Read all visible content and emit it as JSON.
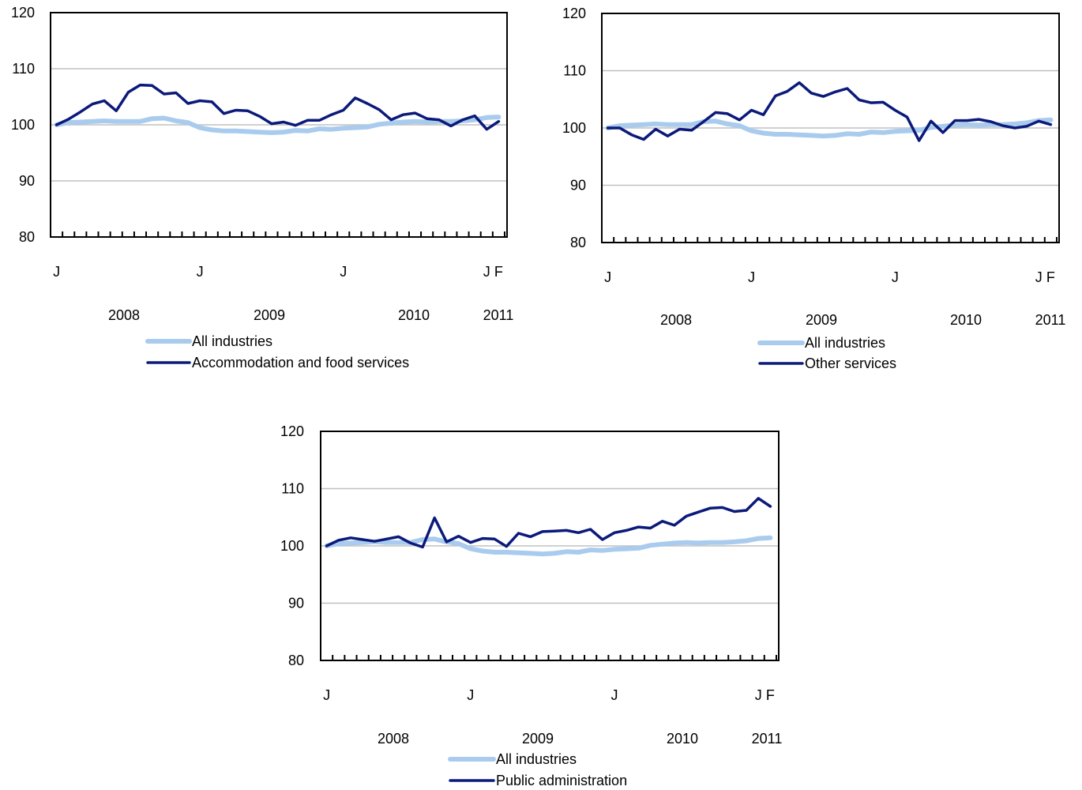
{
  "colors": {
    "all_industries": "#a9cbee",
    "sector": "#0b1a7a",
    "grid": "#c0c0c0"
  },
  "chart_data": [
    {
      "type": "line",
      "title": "",
      "xlabel": "",
      "ylabel": "",
      "ylim": [
        80,
        120
      ],
      "yticks": [
        "80",
        "90",
        "100",
        "110",
        "120"
      ],
      "x": [
        "2008-01",
        "2008-02",
        "2008-03",
        "2008-04",
        "2008-05",
        "2008-06",
        "2008-07",
        "2008-08",
        "2008-09",
        "2008-10",
        "2008-11",
        "2008-12",
        "2009-01",
        "2009-02",
        "2009-03",
        "2009-04",
        "2009-05",
        "2009-06",
        "2009-07",
        "2009-08",
        "2009-09",
        "2009-10",
        "2009-11",
        "2009-12",
        "2010-01",
        "2010-02",
        "2010-03",
        "2010-04",
        "2010-05",
        "2010-06",
        "2010-07",
        "2010-08",
        "2010-09",
        "2010-10",
        "2010-11",
        "2010-12",
        "2011-01",
        "2011-02"
      ],
      "month_labels": [
        {
          "label": "J",
          "month": "2008-01"
        },
        {
          "label": "J",
          "month": "2009-01"
        },
        {
          "label": "J",
          "month": "2010-01"
        },
        {
          "label": "J",
          "month": "2011-01"
        },
        {
          "label": "F",
          "month": "2011-02"
        }
      ],
      "year_labels": [
        "2008",
        "2009",
        "2010",
        "2011"
      ],
      "grid": "horizontal",
      "legend_position": "bottom",
      "series": [
        {
          "name": "All industries",
          "values": [
            100,
            100.4,
            100.5,
            100.6,
            100.7,
            100.6,
            100.6,
            100.6,
            101.1,
            101.2,
            100.7,
            100.4,
            99.5,
            99.1,
            98.9,
            98.9,
            98.8,
            98.7,
            98.6,
            98.7,
            99.0,
            98.9,
            99.3,
            99.2,
            99.4,
            99.5,
            99.6,
            100.1,
            100.3,
            100.5,
            100.6,
            100.5,
            100.6,
            100.6,
            100.7,
            100.9,
            101.3,
            101.4
          ]
        },
        {
          "name": "Accommodation and food services",
          "values": [
            100,
            101,
            102.3,
            103.7,
            104.3,
            102.5,
            105.8,
            107.1,
            107,
            105.5,
            105.7,
            103.8,
            104.3,
            104.1,
            102,
            102.6,
            102.5,
            101.5,
            100.2,
            100.5,
            99.9,
            100.8,
            100.8,
            101.8,
            102.6,
            104.8,
            103.8,
            102.7,
            100.9,
            101.8,
            102.1,
            101.1,
            100.9,
            99.8,
            100.9,
            101.6,
            99.2,
            100.6
          ]
        }
      ]
    },
    {
      "type": "line",
      "title": "",
      "xlabel": "",
      "ylabel": "",
      "ylim": [
        80,
        120
      ],
      "yticks": [
        "80",
        "90",
        "100",
        "110",
        "120"
      ],
      "x": [
        "2008-01",
        "2008-02",
        "2008-03",
        "2008-04",
        "2008-05",
        "2008-06",
        "2008-07",
        "2008-08",
        "2008-09",
        "2008-10",
        "2008-11",
        "2008-12",
        "2009-01",
        "2009-02",
        "2009-03",
        "2009-04",
        "2009-05",
        "2009-06",
        "2009-07",
        "2009-08",
        "2009-09",
        "2009-10",
        "2009-11",
        "2009-12",
        "2010-01",
        "2010-02",
        "2010-03",
        "2010-04",
        "2010-05",
        "2010-06",
        "2010-07",
        "2010-08",
        "2010-09",
        "2010-10",
        "2010-11",
        "2010-12",
        "2011-01",
        "2011-02"
      ],
      "month_labels": [
        {
          "label": "J",
          "month": "2008-01"
        },
        {
          "label": "J",
          "month": "2009-01"
        },
        {
          "label": "J",
          "month": "2010-01"
        },
        {
          "label": "J",
          "month": "2011-01"
        },
        {
          "label": "F",
          "month": "2011-02"
        }
      ],
      "year_labels": [
        "2008",
        "2009",
        "2010",
        "2011"
      ],
      "grid": "horizontal",
      "legend_position": "bottom",
      "series": [
        {
          "name": "All industries",
          "values": [
            100,
            100.4,
            100.5,
            100.6,
            100.7,
            100.6,
            100.6,
            100.6,
            101.1,
            101.2,
            100.7,
            100.4,
            99.5,
            99.1,
            98.9,
            98.9,
            98.8,
            98.7,
            98.6,
            98.7,
            99.0,
            98.9,
            99.3,
            99.2,
            99.4,
            99.5,
            99.6,
            100.1,
            100.3,
            100.5,
            100.6,
            100.5,
            100.6,
            100.6,
            100.7,
            100.9,
            101.3,
            101.4
          ]
        },
        {
          "name": "Other services",
          "values": [
            100,
            100,
            98.8,
            98,
            99.8,
            98.6,
            99.8,
            99.6,
            101.1,
            102.7,
            102.5,
            101.4,
            103.1,
            102.3,
            105.6,
            106.4,
            107.9,
            106.1,
            105.5,
            106.3,
            106.9,
            104.9,
            104.4,
            104.5,
            103.1,
            101.9,
            97.8,
            101.2,
            99.2,
            101.3,
            101.3,
            101.5,
            101.1,
            100.4,
            100,
            100.3,
            101.2,
            100.6
          ]
        }
      ]
    },
    {
      "type": "line",
      "title": "",
      "xlabel": "",
      "ylabel": "",
      "ylim": [
        80,
        120
      ],
      "yticks": [
        "80",
        "90",
        "100",
        "110",
        "120"
      ],
      "x": [
        "2008-01",
        "2008-02",
        "2008-03",
        "2008-04",
        "2008-05",
        "2008-06",
        "2008-07",
        "2008-08",
        "2008-09",
        "2008-10",
        "2008-11",
        "2008-12",
        "2009-01",
        "2009-02",
        "2009-03",
        "2009-04",
        "2009-05",
        "2009-06",
        "2009-07",
        "2009-08",
        "2009-09",
        "2009-10",
        "2009-11",
        "2009-12",
        "2010-01",
        "2010-02",
        "2010-03",
        "2010-04",
        "2010-05",
        "2010-06",
        "2010-07",
        "2010-08",
        "2010-09",
        "2010-10",
        "2010-11",
        "2010-12",
        "2011-01",
        "2011-02"
      ],
      "month_labels": [
        {
          "label": "J",
          "month": "2008-01"
        },
        {
          "label": "J",
          "month": "2009-01"
        },
        {
          "label": "J",
          "month": "2010-01"
        },
        {
          "label": "J",
          "month": "2011-01"
        },
        {
          "label": "F",
          "month": "2011-02"
        }
      ],
      "year_labels": [
        "2008",
        "2009",
        "2010",
        "2011"
      ],
      "grid": "horizontal",
      "legend_position": "bottom",
      "series": [
        {
          "name": "All industries",
          "values": [
            100,
            100.4,
            100.5,
            100.6,
            100.7,
            100.6,
            100.6,
            100.6,
            101.1,
            101.2,
            100.7,
            100.4,
            99.5,
            99.1,
            98.9,
            98.9,
            98.8,
            98.7,
            98.6,
            98.7,
            99.0,
            98.9,
            99.3,
            99.2,
            99.4,
            99.5,
            99.6,
            100.1,
            100.3,
            100.5,
            100.6,
            100.5,
            100.6,
            100.6,
            100.7,
            100.9,
            101.3,
            101.4
          ]
        },
        {
          "name": "Public administration",
          "values": [
            100,
            101,
            101.4,
            101.1,
            100.8,
            101.2,
            101.6,
            100.5,
            99.8,
            104.9,
            100.7,
            101.7,
            100.6,
            101.3,
            101.2,
            99.9,
            102.2,
            101.6,
            102.5,
            102.6,
            102.7,
            102.3,
            102.9,
            101.1,
            102.3,
            102.7,
            103.3,
            103.1,
            104.3,
            103.6,
            105.2,
            105.9,
            106.6,
            106.7,
            106,
            106.2,
            108.3,
            106.9
          ]
        }
      ]
    }
  ]
}
